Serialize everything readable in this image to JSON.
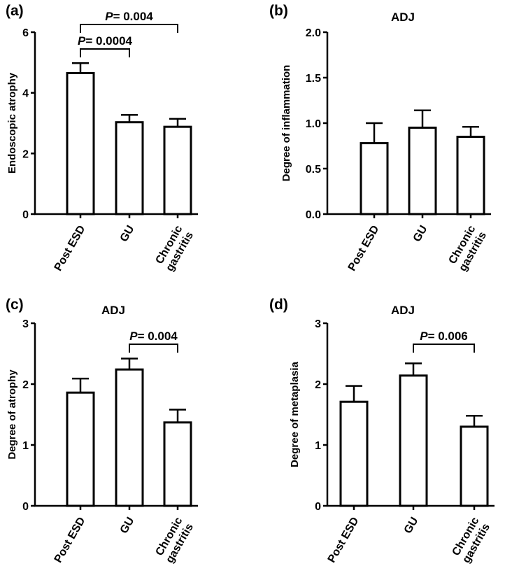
{
  "chart_data": [
    {
      "type": "bar",
      "panel_label": "(a)",
      "title": "",
      "ylabel": "Endoscopic atrophy",
      "categories": [
        [
          "Post ESD"
        ],
        [
          "GU"
        ],
        [
          "Chronic",
          "gastritis"
        ]
      ],
      "values": [
        4.65,
        3.03,
        2.88
      ],
      "errors": [
        0.33,
        0.24,
        0.26
      ],
      "ylim": [
        0,
        6
      ],
      "yticks": [
        "0",
        "2",
        "4",
        "6"
      ],
      "ytick_values": [
        0,
        2,
        4,
        6
      ],
      "annotations": [
        {
          "p_prefix": "P",
          "text": "= 0.0004",
          "from": 0,
          "to": 1
        },
        {
          "p_prefix": "P",
          "text": "= 0.004",
          "from": 0,
          "to": 2
        }
      ]
    },
    {
      "type": "bar",
      "panel_label": "(b)",
      "title": "ADJ",
      "ylabel": "Degree of inflammation",
      "categories": [
        [
          "Post ESD"
        ],
        [
          "GU"
        ],
        [
          "Chronic",
          "gastritis"
        ]
      ],
      "values": [
        0.78,
        0.95,
        0.85
      ],
      "errors": [
        0.22,
        0.19,
        0.11
      ],
      "ylim": [
        0,
        2
      ],
      "yticks": [
        "0.0",
        "0.5",
        "1.0",
        "1.5",
        "2.0"
      ],
      "ytick_values": [
        0,
        0.5,
        1.0,
        1.5,
        2.0
      ],
      "annotations": []
    },
    {
      "type": "bar",
      "panel_label": "(c)",
      "title": "ADJ",
      "ylabel": "Degree of atrophy",
      "categories": [
        [
          "Post ESD"
        ],
        [
          "GU"
        ],
        [
          "Chronic",
          "gastritis"
        ]
      ],
      "values": [
        1.86,
        2.24,
        1.37
      ],
      "errors": [
        0.23,
        0.18,
        0.21
      ],
      "ylim": [
        0,
        3
      ],
      "yticks": [
        "0",
        "1",
        "2",
        "3"
      ],
      "ytick_values": [
        0,
        1,
        2,
        3
      ],
      "annotations": [
        {
          "p_prefix": "P",
          "text": "= 0.004",
          "from": 1,
          "to": 2
        }
      ]
    },
    {
      "type": "bar",
      "panel_label": "(d)",
      "title": "ADJ",
      "ylabel": "Degree of metaplasia",
      "categories": [
        [
          "Post ESD"
        ],
        [
          "GU"
        ],
        [
          "Chronic",
          "gastritis"
        ]
      ],
      "values": [
        1.71,
        2.14,
        1.3
      ],
      "errors": [
        0.26,
        0.2,
        0.18
      ],
      "ylim": [
        0,
        3
      ],
      "yticks": [
        "0",
        "1",
        "2",
        "3"
      ],
      "ytick_values": [
        0,
        1,
        2,
        3
      ],
      "annotations": [
        {
          "p_prefix": "P",
          "text": "= 0.006",
          "from": 1,
          "to": 2
        }
      ]
    }
  ]
}
